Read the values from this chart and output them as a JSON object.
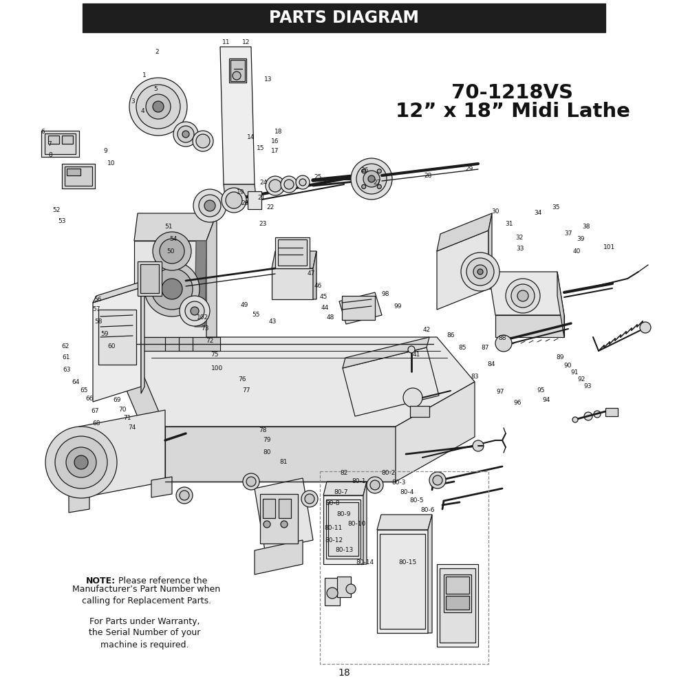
{
  "title": "PARTS DIAGRAM",
  "title_bg": "#1e1e1e",
  "title_color": "#ffffff",
  "title_fontsize": 17,
  "model_line1": "70-1218VS",
  "model_line2": "12” x 18” Midi Lathe",
  "model_fontsize": 21,
  "note_bold": "NOTE:",
  "note_rest": " Please reference the",
  "note_line2": "Manufacturer’s Part Number when",
  "note_line3": "calling for Replacement Parts.",
  "note2_line1": "For Parts under Warranty,",
  "note2_line2": "the Serial Number of your",
  "note2_line3": "machine is required.",
  "page_number": "18",
  "bg_color": "#ffffff",
  "dc": "#1a1a1a",
  "lw": 0.9
}
